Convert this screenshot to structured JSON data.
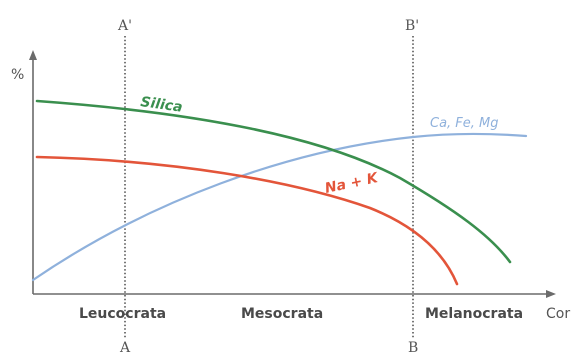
{
  "diagram": {
    "y_axis_label": "%",
    "x_axis_label": "Cor",
    "markers": {
      "a_top": "A'",
      "a_bottom": "A",
      "b_top": "B'",
      "b_bottom": "B"
    },
    "zones": [
      "Leucocrata",
      "Mesocrata",
      "Melanocrata"
    ],
    "series": {
      "silica": "Silica",
      "cafemg": "Ca, Fe, Mg",
      "nak": "Na + K"
    },
    "colors": {
      "silica": "#3a8f4e",
      "cafemg": "#8fb1dc",
      "nak": "#e3553a",
      "axis": "#6b6b6b"
    }
  }
}
